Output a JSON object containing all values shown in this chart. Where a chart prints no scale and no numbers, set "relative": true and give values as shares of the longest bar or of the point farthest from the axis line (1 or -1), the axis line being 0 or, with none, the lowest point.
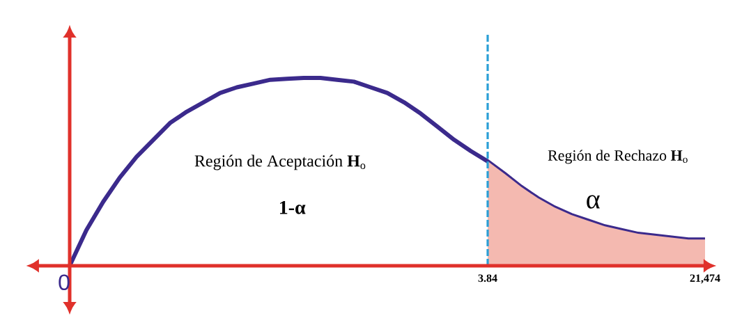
{
  "chart_data": {
    "type": "line",
    "relative": true,
    "categories": [
      "0",
      null,
      null,
      null,
      null,
      null,
      null,
      null,
      null,
      null,
      null,
      null,
      null,
      null,
      null,
      null,
      null,
      null,
      null,
      null,
      null,
      null,
      null,
      null,
      null,
      "3.84",
      null,
      null,
      null,
      null,
      null,
      null,
      null,
      null,
      null,
      null,
      null,
      null,
      "21,474"
    ],
    "series": [
      {
        "color": "#3b2a8c",
        "values": [
          0,
          0.19,
          0.34,
          0.47,
          0.58,
          0.67,
          0.76,
          0.82,
          0.87,
          0.92,
          0.95,
          0.97,
          0.99,
          0.995,
          1,
          1,
          0.99,
          0.98,
          0.95,
          0.92,
          0.87,
          0.81,
          0.74,
          0.67,
          0.61,
          0.556,
          0.49,
          0.42,
          0.36,
          0.31,
          0.27,
          0.24,
          0.21,
          0.19,
          0.17,
          0.16,
          0.15,
          0.14,
          0.14
        ]
      },
      {
        "type": "area",
        "color": "#f4b9b0",
        "values": [
          null,
          null,
          null,
          null,
          null,
          null,
          null,
          null,
          null,
          null,
          null,
          null,
          null,
          null,
          null,
          null,
          null,
          null,
          null,
          null,
          null,
          null,
          null,
          null,
          null,
          0.556,
          0.49,
          0.42,
          0.36,
          0.31,
          0.27,
          0.24,
          0.21,
          0.19,
          0.17,
          0.16,
          0.15,
          0.14,
          0.14
        ]
      }
    ],
    "ref_lines": [
      {
        "axis": "x",
        "value": "3.84",
        "color": "#2a9fd6",
        "line_style": "dashed"
      }
    ],
    "annotations": [
      "Región de Aceptación **H**$_{o}$",
      "**1-α**",
      "Región de Rechazo **H**$_{o}$",
      "α"
    ]
  }
}
